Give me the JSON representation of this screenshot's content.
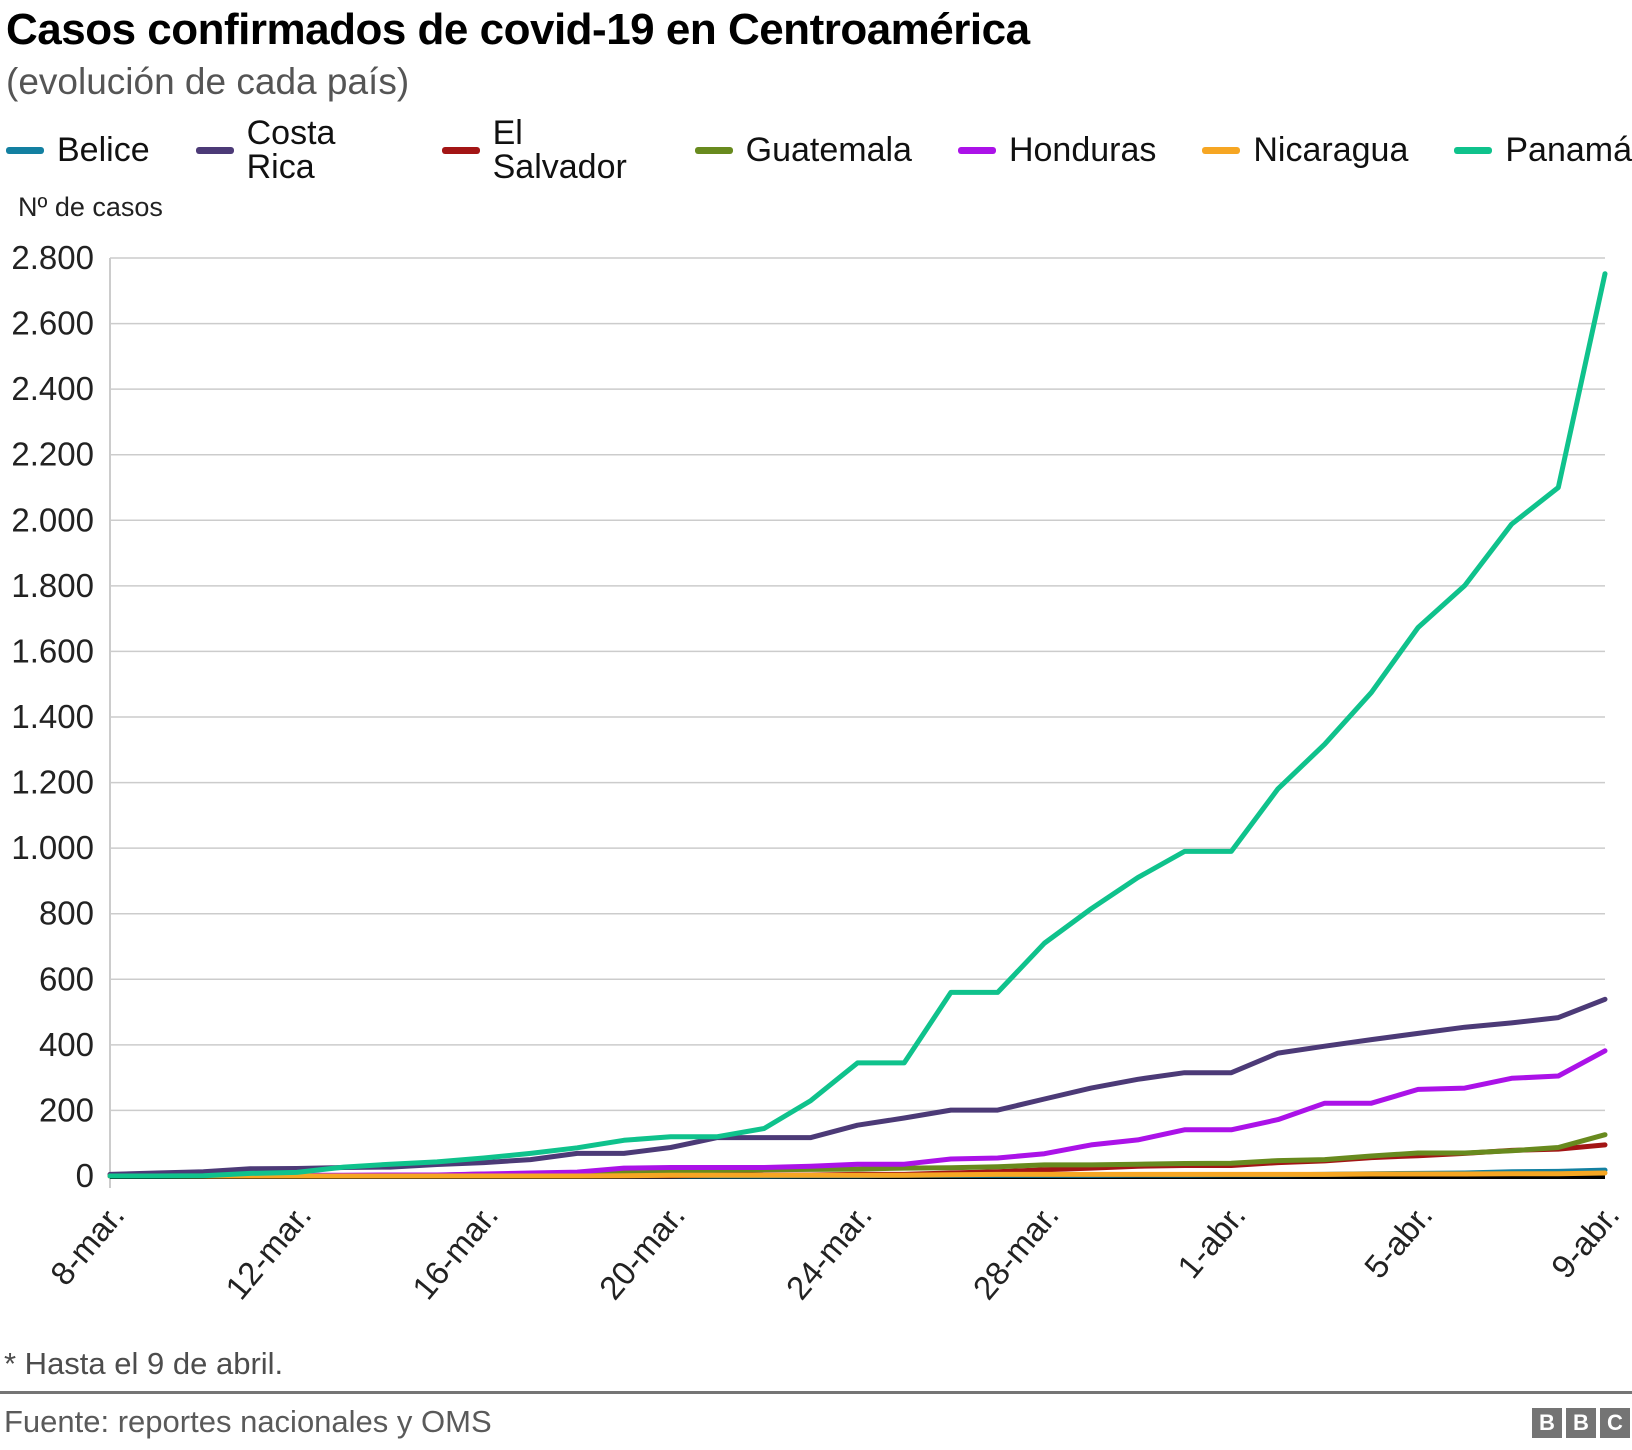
{
  "header": {
    "title": "Casos confirmados de covid-19 en Centroamérica",
    "subtitle": "(evolución de cada país)"
  },
  "y_axis": {
    "label": "Nº de casos",
    "tick_labels": [
      "0",
      "200",
      "400",
      "600",
      "800",
      "1.000",
      "1.200",
      "1.400",
      "1.600",
      "1.800",
      "2.000",
      "2.200",
      "2.400",
      "2.600",
      "2.800"
    ],
    "tick_step": 200,
    "max": 2800
  },
  "x_axis": {
    "tick_indices": [
      0,
      4,
      8,
      12,
      16,
      20,
      24,
      28,
      32
    ]
  },
  "chart_data": {
    "type": "line",
    "title": "Casos confirmados de covid-19 en Centroamérica",
    "subtitle": "(evolución de cada país)",
    "ylabel": "Nº de casos",
    "ylim": [
      0,
      2800
    ],
    "grid": "horizontal",
    "legend_position": "top",
    "grid_color": "#cccccc",
    "zero_axis_color": "#000000",
    "x": [
      "8-mar.",
      "9-mar.",
      "10-mar.",
      "11-mar.",
      "12-mar.",
      "13-mar.",
      "14-mar.",
      "15-mar.",
      "16-mar.",
      "17-mar.",
      "18-mar.",
      "19-mar.",
      "20-mar.",
      "21-mar.",
      "22-mar.",
      "23-mar.",
      "24-mar.",
      "25-mar.",
      "26-mar.",
      "27-mar.",
      "28-mar.",
      "29-mar.",
      "30-mar.",
      "31-mar.",
      "1-abr.",
      "2-abr.",
      "3-abr.",
      "4-abr.",
      "5-abr.",
      "6-abr.",
      "7-abr.",
      "8-abr.",
      "9-abr."
    ],
    "series": [
      {
        "name": "Belice",
        "color": "#1380A1",
        "values": [
          0,
          0,
          0,
          0,
          0,
          0,
          0,
          0,
          0,
          0,
          0,
          0,
          0,
          0,
          0,
          1,
          1,
          2,
          2,
          2,
          2,
          2,
          3,
          3,
          4,
          4,
          5,
          7,
          8,
          9,
          13,
          14,
          18
        ]
      },
      {
        "name": "Costa Rica",
        "color": "#4c3a77",
        "values": [
          5,
          9,
          13,
          22,
          23,
          26,
          27,
          35,
          41,
          50,
          69,
          69,
          87,
          117,
          117,
          117,
          155,
          177,
          201,
          201,
          235,
          268,
          295,
          315,
          315,
          375,
          396,
          416,
          435,
          454,
          467,
          483,
          539
        ]
      },
      {
        "name": "El Salvador",
        "color": "#a31515",
        "values": [
          0,
          0,
          0,
          0,
          0,
          0,
          0,
          0,
          0,
          0,
          1,
          1,
          1,
          3,
          3,
          3,
          5,
          5,
          9,
          13,
          19,
          24,
          30,
          32,
          32,
          41,
          46,
          56,
          62,
          69,
          78,
          82,
          95
        ]
      },
      {
        "name": "Guatemala",
        "color": "#688a1e",
        "values": [
          0,
          0,
          0,
          0,
          0,
          1,
          2,
          2,
          6,
          6,
          8,
          9,
          12,
          17,
          19,
          20,
          21,
          24,
          25,
          28,
          34,
          34,
          36,
          38,
          39,
          47,
          50,
          61,
          70,
          70,
          77,
          87,
          126
        ]
      },
      {
        "name": "Honduras",
        "color": "#ab12e8",
        "values": [
          0,
          0,
          0,
          2,
          2,
          2,
          3,
          3,
          6,
          9,
          12,
          24,
          26,
          26,
          26,
          30,
          36,
          36,
          52,
          55,
          68,
          95,
          110,
          141,
          141,
          172,
          222,
          222,
          264,
          268,
          298,
          305,
          382
        ]
      },
      {
        "name": "Nicaragua",
        "color": "#f6a623",
        "values": [
          0,
          0,
          0,
          0,
          0,
          0,
          0,
          0,
          0,
          0,
          0,
          1,
          2,
          2,
          2,
          2,
          2,
          2,
          4,
          5,
          5,
          5,
          5,
          5,
          5,
          5,
          5,
          6,
          6,
          6,
          7,
          7,
          9
        ]
      },
      {
        "name": "Panamá",
        "color": "#0fc28c",
        "values": [
          0,
          0,
          1,
          8,
          11,
          27,
          36,
          43,
          55,
          69,
          86,
          109,
          120,
          120,
          145,
          230,
          345,
          345,
          560,
          560,
          710,
          815,
          910,
          990,
          990,
          1181,
          1317,
          1475,
          1673,
          1801,
          1988,
          2100,
          2752
        ]
      }
    ]
  },
  "footer": {
    "note": "* Hasta el 9 de abril.",
    "source": "Fuente: reportes nacionales y OMS",
    "logo_letters": [
      "B",
      "B",
      "C"
    ]
  }
}
